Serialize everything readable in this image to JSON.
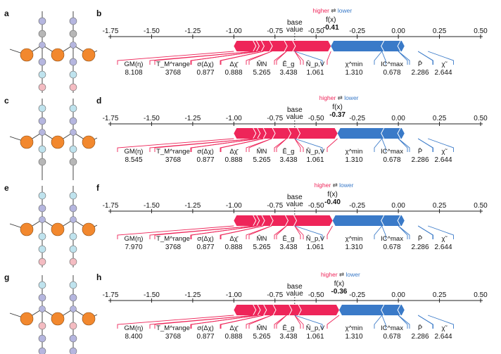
{
  "panel_labels": [
    "a",
    "b",
    "c",
    "d",
    "e",
    "f",
    "g",
    "h"
  ],
  "legend": {
    "higher": "higher",
    "arrows": "⇄",
    "lower": "lower"
  },
  "base_value_label": [
    "base",
    "value"
  ],
  "fx_label": "f(x)",
  "colors": {
    "positive": "#ee2559",
    "negative": "#3a7ac8",
    "atom_metal": "#f2882e",
    "atom_gray": "#b7b7b7",
    "atom_lightblue": "#bfe3ee",
    "atom_purple": "#b5b6df",
    "atom_pink": "#f4bcc2"
  },
  "structures": [
    {
      "panel": "a",
      "chain_top": [
        "gray",
        "blue"
      ],
      "chain_bottom": [
        "purple",
        "lightblue",
        "pink"
      ]
    },
    {
      "panel": "c",
      "chain_top": [
        "purple",
        "lightblue",
        "pink"
      ],
      "chain_bottom": [
        "lightblue",
        "gray"
      ]
    },
    {
      "panel": "e",
      "chain_top": [
        "purple",
        "lightblue"
      ],
      "chain_bottom": [
        "lightblue",
        "lightblue",
        "pink"
      ]
    },
    {
      "panel": "g",
      "chain_top": [
        "purple",
        "lightblue"
      ],
      "chain_bottom": [
        "pink",
        "purple",
        "purple"
      ]
    }
  ],
  "chart_data": [
    {
      "panel": "b",
      "type": "force_plot",
      "xlim": [
        -1.75,
        0.5
      ],
      "ticks": [
        "-1.75",
        "-1.50",
        "-1.25",
        "-1.00",
        "-0.75",
        "-0.50",
        "-0.25",
        "0.00",
        "0.25",
        "0.50"
      ],
      "base_value": -0.63,
      "fx_value": "-0.41",
      "fx": -0.41,
      "features": [
        "GM(η)",
        "T_M^range",
        "σ(Δχ)",
        "Δχ̄",
        "M̂N",
        "Ē_g",
        "N̂_p,V",
        "χ^min",
        "IC^max",
        "P̄",
        "χ̃"
      ],
      "values": [
        "8.108",
        "3768",
        "0.877",
        "0.888",
        "5.265",
        "3.438",
        "1.061",
        "1.310",
        "0.678",
        "2.286",
        "2.644"
      ]
    },
    {
      "panel": "d",
      "type": "force_plot",
      "xlim": [
        -1.75,
        0.5
      ],
      "ticks": [
        "-1.75",
        "-1.50",
        "-1.25",
        "-1.00",
        "-0.75",
        "-0.50",
        "-0.25",
        "0.00",
        "0.25",
        "0.50"
      ],
      "base_value": -0.63,
      "fx_value": "-0.37",
      "fx": -0.37,
      "features": [
        "GM(η)",
        "T_M^range",
        "σ(Δχ)",
        "Δχ̄",
        "M̂N",
        "Ē_g",
        "N̂_p,V",
        "χ^min",
        "IC^max",
        "P̄",
        "χ̃"
      ],
      "values": [
        "8.545",
        "3768",
        "0.877",
        "0.888",
        "5.265",
        "3.438",
        "1.061",
        "1.310",
        "0.678",
        "2.286",
        "2.644"
      ]
    },
    {
      "panel": "f",
      "type": "force_plot",
      "xlim": [
        -1.75,
        0.5
      ],
      "ticks": [
        "-1.75",
        "-1.50",
        "-1.25",
        "-1.00",
        "-0.75",
        "-0.50",
        "-0.25",
        "0.00",
        "0.25",
        "0.50"
      ],
      "base_value": -0.63,
      "fx_value": "-0.40",
      "fx": -0.4,
      "features": [
        "GM(η)",
        "T_M^range",
        "σ(Δχ)",
        "Δχ̄",
        "M̂N",
        "Ē_g",
        "N̂_p,V",
        "χ^min",
        "IC^max",
        "P̄",
        "χ̃"
      ],
      "values": [
        "7.970",
        "3768",
        "0.877",
        "0.888",
        "5.265",
        "3.438",
        "1.061",
        "1.310",
        "0.678",
        "2.286",
        "2.644"
      ]
    },
    {
      "panel": "h",
      "type": "force_plot",
      "xlim": [
        -1.75,
        0.5
      ],
      "ticks": [
        "-1.75",
        "-1.50",
        "-1.25",
        "-1.00",
        "-0.75",
        "-0.50",
        "-0.25",
        "0.00",
        "0.25",
        "0.50"
      ],
      "base_value": -0.63,
      "fx_value": "-0.36",
      "fx": -0.36,
      "features": [
        "GM(η)",
        "T_M^range",
        "σ(Δχ)",
        "Δχ̄",
        "M̂N",
        "Ē_g",
        "N̂_p,V",
        "χ^min",
        "IC^max",
        "P̄",
        "χ̃"
      ],
      "values": [
        "8.400",
        "3768",
        "0.877",
        "0.888",
        "5.265",
        "3.438",
        "1.061",
        "1.310",
        "0.678",
        "2.286",
        "2.644"
      ]
    }
  ]
}
